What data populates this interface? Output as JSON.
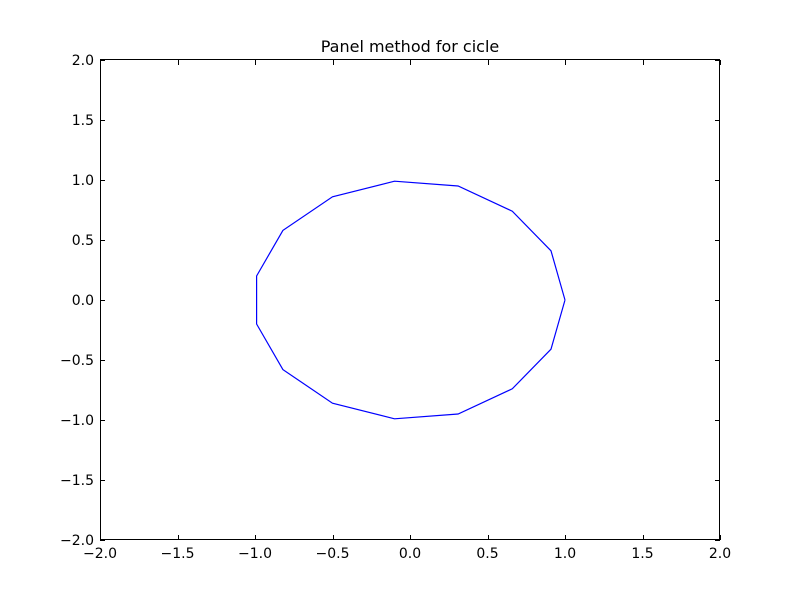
{
  "chart_data": {
    "type": "line",
    "title": "Panel method for cicle",
    "xlabel": "",
    "ylabel": "",
    "xlim": [
      -2.0,
      2.0
    ],
    "ylim": [
      -2.0,
      2.0
    ],
    "grid": false,
    "xticks": [
      -2.0,
      -1.5,
      -1.0,
      -0.5,
      0.0,
      0.5,
      1.0,
      1.5,
      2.0
    ],
    "yticks": [
      -2.0,
      -1.5,
      -1.0,
      -0.5,
      0.0,
      0.5,
      1.0,
      1.5,
      2.0
    ],
    "xtick_labels": [
      "−2.0",
      "−1.5",
      "−1.0",
      "−0.5",
      "0.0",
      "0.5",
      "1.0",
      "1.5",
      "2.0"
    ],
    "ytick_labels": [
      "−2.0",
      "−1.5",
      "−1.0",
      "−0.5",
      "0.0",
      "0.5",
      "1.0",
      "1.5",
      "2.0"
    ],
    "series": [
      {
        "color": "#0000ff",
        "x": [
          1.0,
          0.91,
          0.66,
          0.31,
          -0.1,
          -0.5,
          -0.82,
          -0.99,
          -0.99,
          -0.82,
          -0.5,
          -0.1,
          0.31,
          0.66,
          0.91,
          1.0
        ],
        "y": [
          0.0,
          0.41,
          0.74,
          0.95,
          0.99,
          0.86,
          0.58,
          0.2,
          -0.2,
          -0.58,
          -0.86,
          -0.99,
          -0.95,
          -0.74,
          -0.41,
          0.0
        ]
      }
    ]
  }
}
